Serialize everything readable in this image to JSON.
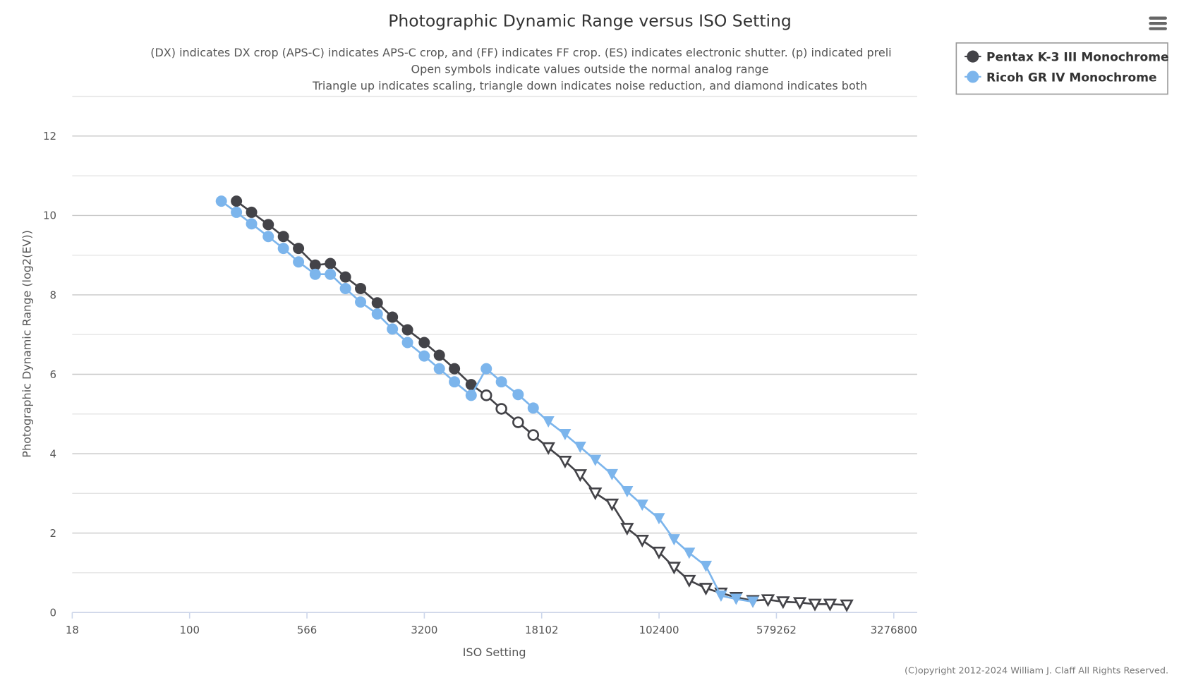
{
  "chart_data": {
    "type": "line",
    "title": "Photographic Dynamic Range versus ISO Setting",
    "subtitles": [
      "(DX) indicates DX crop (APS-C) indicates APS-C crop, and (FF) indicates FF crop. (ES) indicates electronic shutter. (p) indicated preli",
      "Open symbols indicate values outside the normal analog range",
      "Triangle up indicates scaling, triangle down indicates noise reduction, and diamond indicates both"
    ],
    "xlabel": "ISO Setting",
    "ylabel": "Photographic Dynamic Range (log2(EV))",
    "x_scale": "log2",
    "xlim": [
      17.7,
      4634000
    ],
    "ylim": [
      0,
      13
    ],
    "x_ticks": [
      "18",
      "100",
      "566",
      "3200",
      "18102",
      "102400",
      "579262",
      "3276800"
    ],
    "y_ticks": [
      "0",
      "2",
      "4",
      "6",
      "8",
      "10",
      "12"
    ],
    "grid": true,
    "legend_position": "top-right",
    "series": [
      {
        "name": "Pentax K-3 III Monochrome",
        "color": "#434348",
        "iso": [
          200,
          250,
          320,
          400,
          500,
          640,
          800,
          1000,
          1250,
          1600,
          2000,
          2500,
          3200,
          4000,
          5000,
          6400,
          8000,
          10000,
          12800,
          16000,
          20000,
          25600,
          32000,
          40000,
          51200,
          64000,
          80000,
          102400,
          128000,
          160000,
          204800,
          256000,
          320000,
          409600,
          512000,
          640000,
          819200,
          1024000,
          1280000,
          1638400
        ],
        "values": [
          10.36,
          10.08,
          9.77,
          9.47,
          9.17,
          8.75,
          8.79,
          8.45,
          8.16,
          7.8,
          7.44,
          7.12,
          6.8,
          6.48,
          6.14,
          5.74,
          5.47,
          5.13,
          4.79,
          4.47,
          4.15,
          3.81,
          3.47,
          3.01,
          2.73,
          2.12,
          1.82,
          1.52,
          1.14,
          0.81,
          0.61,
          0.49,
          0.38,
          0.3,
          0.32,
          0.27,
          0.25,
          0.21,
          0.21,
          0.19
        ],
        "markers": [
          "circle",
          "circle",
          "circle",
          "circle",
          "circle",
          "circle",
          "circle",
          "circle",
          "circle",
          "circle",
          "circle",
          "circle",
          "circle",
          "circle",
          "circle",
          "circle",
          "open-circle",
          "open-circle",
          "open-circle",
          "open-circle",
          "open-triangle-down",
          "open-triangle-down",
          "open-triangle-down",
          "open-triangle-down",
          "open-triangle-down",
          "open-triangle-down",
          "open-triangle-down",
          "open-triangle-down",
          "open-triangle-down",
          "open-triangle-down",
          "open-triangle-down",
          "open-triangle-down",
          "open-triangle-down",
          "open-triangle-down",
          "open-triangle-down",
          "open-triangle-down",
          "open-triangle-down",
          "open-triangle-down",
          "open-triangle-down",
          "open-triangle-down"
        ]
      },
      {
        "name": "Ricoh GR IV Monochrome",
        "color": "#7cb5ec",
        "iso": [
          160,
          200,
          250,
          320,
          400,
          500,
          640,
          800,
          1000,
          1250,
          1600,
          2000,
          2500,
          3200,
          4000,
          5000,
          6400,
          8000,
          10000,
          12800,
          16000,
          20000,
          25600,
          32000,
          40000,
          51200,
          64000,
          80000,
          102400,
          128000,
          160000,
          204800,
          256000,
          320000,
          409600
        ],
        "values": [
          10.36,
          10.08,
          9.79,
          9.47,
          9.17,
          8.83,
          8.52,
          8.52,
          8.16,
          7.82,
          7.52,
          7.14,
          6.8,
          6.46,
          6.14,
          5.81,
          5.47,
          6.14,
          5.81,
          5.49,
          5.15,
          4.81,
          4.49,
          4.17,
          3.84,
          3.48,
          3.05,
          2.71,
          2.37,
          1.84,
          1.5,
          1.17,
          0.42,
          0.34,
          0.27
        ],
        "markers": [
          "circle",
          "circle",
          "circle",
          "circle",
          "circle",
          "circle",
          "circle",
          "circle",
          "circle",
          "circle",
          "circle",
          "circle",
          "circle",
          "circle",
          "circle",
          "circle",
          "circle",
          "circle",
          "circle",
          "circle",
          "circle",
          "triangle-down",
          "triangle-down",
          "triangle-down",
          "triangle-down",
          "triangle-down",
          "triangle-down",
          "triangle-down",
          "triangle-down",
          "triangle-down",
          "triangle-down",
          "triangle-down",
          "triangle-down",
          "triangle-down",
          "triangle-down"
        ]
      }
    ]
  },
  "copyright": "(C)opyright 2012-2024 William J. Claff All Rights Reserved.",
  "menu_icon": "hamburger-menu-icon"
}
